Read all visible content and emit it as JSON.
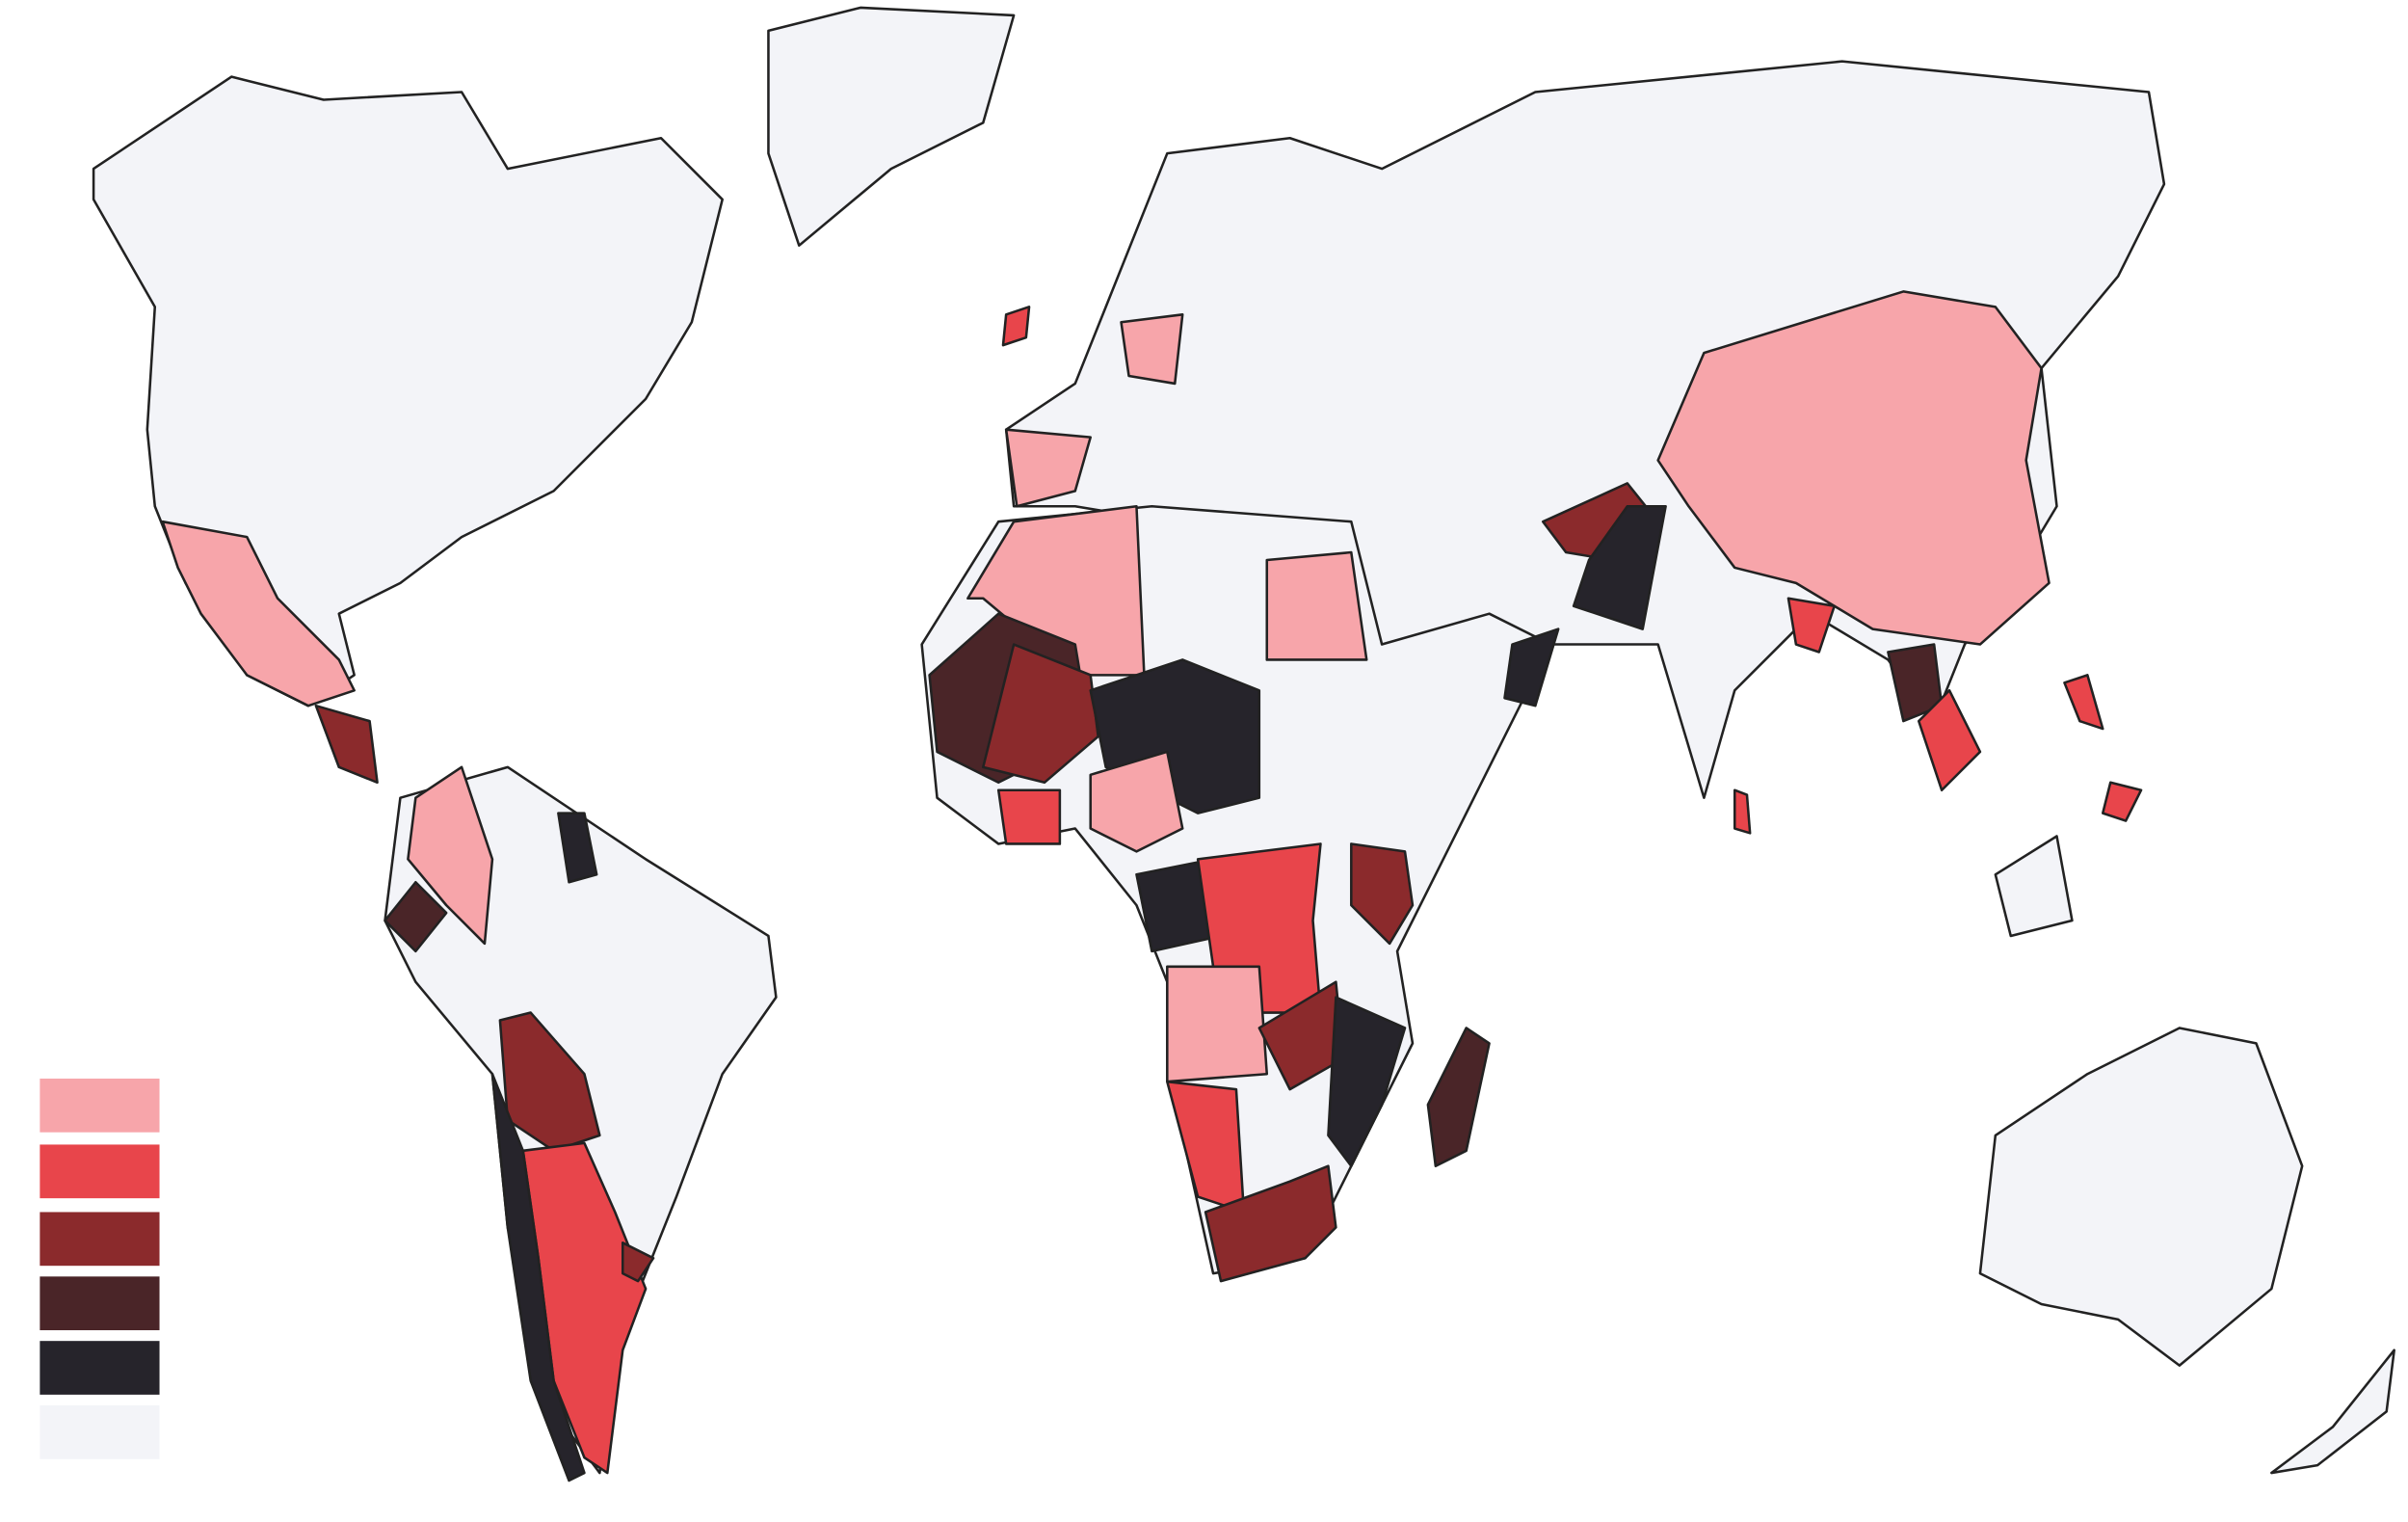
{
  "legend": {
    "colors": [
      "#f7a5aa",
      "#e8454b",
      "#8b2a2c",
      "#4a2528",
      "#26242b",
      "#f3f4f8"
    ]
  }
}
